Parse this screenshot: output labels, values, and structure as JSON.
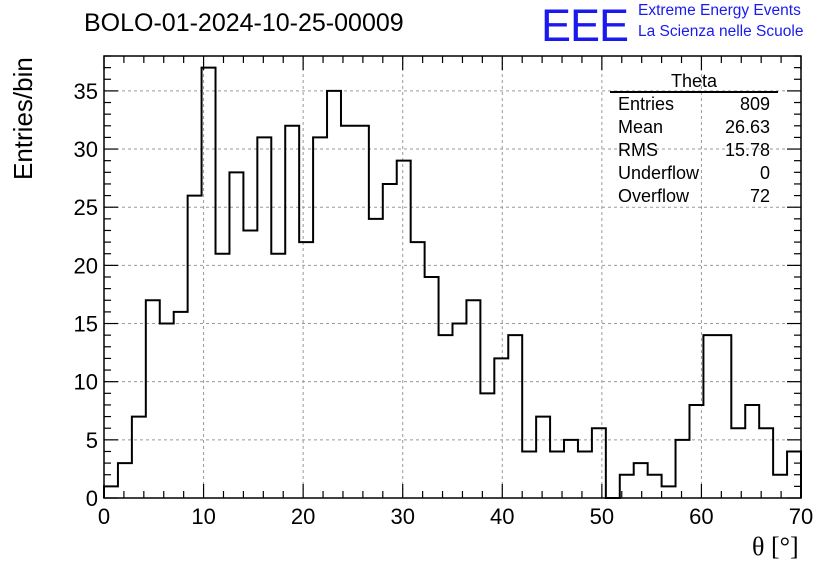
{
  "header": {
    "title": "BOLO-01-2024-10-25-00009",
    "logo_text": "EEE",
    "logo_line1": "Extreme Energy Events",
    "logo_line2": "La Scienza nelle Scuole"
  },
  "stats": {
    "title": "Theta",
    "rows": [
      {
        "label": "Entries",
        "value": "809"
      },
      {
        "label": "Mean",
        "value": "26.63"
      },
      {
        "label": "RMS",
        "value": "15.78"
      },
      {
        "label": "Underflow",
        "value": "0"
      },
      {
        "label": "Overflow",
        "value": "72"
      }
    ]
  },
  "chart_data": {
    "type": "bar",
    "style": "step-histogram",
    "xlabel": "θ [°]",
    "ylabel": "Entries/bin",
    "xlim": [
      0,
      70
    ],
    "ylim": [
      0,
      38
    ],
    "bin_width": 1.4,
    "xticks": [
      0,
      10,
      20,
      30,
      40,
      50,
      60,
      70
    ],
    "yticks": [
      0,
      5,
      10,
      15,
      20,
      25,
      30,
      35
    ],
    "grid": true,
    "line_color": "#000000",
    "grid_color": "#9a9a9a",
    "values": [
      1,
      3,
      7,
      17,
      15,
      16,
      26,
      37,
      21,
      28,
      23,
      31,
      21,
      32,
      22,
      31,
      35,
      32,
      32,
      24,
      27,
      29,
      22,
      19,
      14,
      15,
      17,
      9,
      12,
      14,
      4,
      7,
      4,
      5,
      4,
      6,
      0,
      2,
      3,
      2,
      1,
      5,
      8,
      14,
      14,
      6,
      8,
      6,
      2,
      4
    ]
  }
}
